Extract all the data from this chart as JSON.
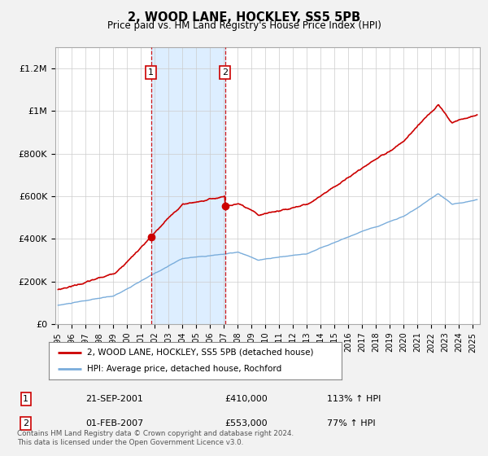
{
  "title": "2, WOOD LANE, HOCKLEY, SS5 5PB",
  "subtitle": "Price paid vs. HM Land Registry's House Price Index (HPI)",
  "ylabel_values": [
    "£0",
    "£200K",
    "£400K",
    "£600K",
    "£800K",
    "£1M",
    "£1.2M"
  ],
  "yticks": [
    0,
    200000,
    400000,
    600000,
    800000,
    1000000,
    1200000
  ],
  "ylim": [
    0,
    1300000
  ],
  "xlim_start": 1994.8,
  "xlim_end": 2025.5,
  "background_color": "#f2f2f2",
  "plot_background": "#ffffff",
  "hpi_color": "#7aaddb",
  "price_color": "#cc0000",
  "sale1_date": 2001.72,
  "sale1_price": 410000,
  "sale2_date": 2007.08,
  "sale2_price": 553000,
  "legend_line1": "2, WOOD LANE, HOCKLEY, SS5 5PB (detached house)",
  "legend_line2": "HPI: Average price, detached house, Rochford",
  "table_row1": [
    "1",
    "21-SEP-2001",
    "£410,000",
    "113% ↑ HPI"
  ],
  "table_row2": [
    "2",
    "01-FEB-2007",
    "£553,000",
    "77% ↑ HPI"
  ],
  "footer": "Contains HM Land Registry data © Crown copyright and database right 2024.\nThis data is licensed under the Open Government Licence v3.0.",
  "shade_color": "#ddeeff"
}
